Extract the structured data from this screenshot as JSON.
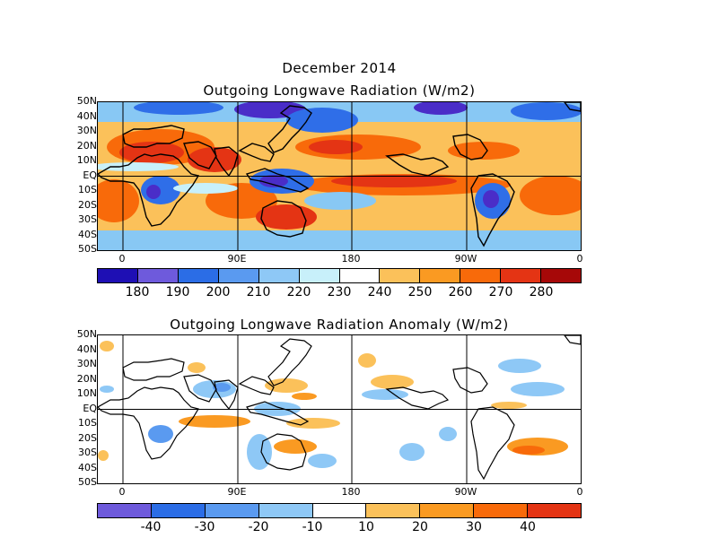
{
  "header": {
    "date_title": "December 2014",
    "top_title": "Outgoing Longwave Radiation (W/m2)",
    "bottom_title": "Outgoing Longwave Radiation Anomaly (W/m2)"
  },
  "axes": {
    "lat_labels": [
      "50N",
      "40N",
      "30N",
      "20N",
      "10N",
      "EQ",
      "10S",
      "20S",
      "30S",
      "40S",
      "50S"
    ],
    "lon_labels": [
      "0",
      "90E",
      "180",
      "90W",
      "0"
    ]
  },
  "top_colorbar": {
    "colors": [
      "#1e0fb4",
      "#6e5adc",
      "#2b6de6",
      "#5a9af0",
      "#8ec8f6",
      "#c8f0fa",
      "#ffffff",
      "#fbc15a",
      "#fa9a22",
      "#f86a0a",
      "#e43414",
      "#a60808"
    ],
    "labels": [
      "180",
      "190",
      "200",
      "210",
      "220",
      "230",
      "240",
      "250",
      "260",
      "270",
      "280"
    ]
  },
  "bottom_colorbar": {
    "colors": [
      "#6e5adc",
      "#2b6de6",
      "#5a9af0",
      "#8ec8f6",
      "#ffffff",
      "#fbc15a",
      "#fa9a22",
      "#f86a0a",
      "#e43414"
    ],
    "labels": [
      "-40",
      "-30",
      "-20",
      "-10",
      "10",
      "20",
      "30",
      "40"
    ]
  },
  "map_colors": {
    "land": "#000000",
    "deep_convection": "#4a2dc8",
    "wet": "#2f6ee8",
    "moist": "#88c8f4",
    "neutral": "#c8f0fa",
    "warm": "#fbc15a",
    "hot": "#f86a0a",
    "hottest": "#e43414",
    "anom_pos": "#fbc15a",
    "anom_pos_strong": "#fa9a22",
    "anom_neg": "#8ec8f6",
    "anom_neg_strong": "#5a9af0"
  }
}
